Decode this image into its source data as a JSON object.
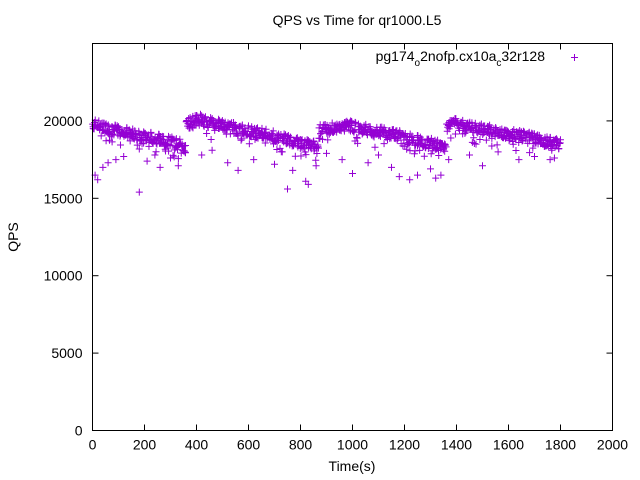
{
  "chart_data": {
    "type": "scatter",
    "title": "QPS vs Time for qr1000.L5",
    "xlabel": "Time(s)",
    "ylabel": "QPS",
    "xlim": [
      0,
      2000
    ],
    "ylim": [
      0,
      25000
    ],
    "x_ticks": [
      0,
      200,
      400,
      600,
      800,
      1000,
      1200,
      1400,
      1600,
      1800,
      2000
    ],
    "y_ticks": [
      0,
      5000,
      10000,
      15000,
      20000
    ],
    "grid": false,
    "legend_position": "top-right",
    "marker": "+",
    "series": [
      {
        "name": "pg174_o2nofp.cx10a_c32r128",
        "legend_text": {
          "a": "pg174",
          "b": "o",
          "c": "2nofp.cx10a",
          "d": "c",
          "e": "32r128"
        },
        "color": "#9400d3",
        "sample_interval_s": 5,
        "segments": [
          {
            "x_range": [
              0,
              60
            ],
            "trend": [
              19800,
              19500
            ]
          },
          {
            "x_range": [
              60,
              200
            ],
            "trend": [
              19500,
              19000
            ]
          },
          {
            "x_range": [
              200,
              340
            ],
            "trend": [
              19000,
              18500
            ]
          },
          {
            "x_range": [
              340,
              360
            ],
            "trend": [
              18200,
              18200
            ]
          },
          {
            "x_range": [
              360,
              420
            ],
            "trend": [
              19800,
              20200
            ]
          },
          {
            "x_range": [
              420,
              700
            ],
            "trend": [
              20000,
              19000
            ]
          },
          {
            "x_range": [
              700,
              870
            ],
            "trend": [
              19000,
              18300
            ]
          },
          {
            "x_range": [
              870,
              1000
            ],
            "trend": [
              19500,
              19700
            ]
          },
          {
            "x_range": [
              1000,
              1200
            ],
            "trend": [
              19600,
              19000
            ]
          },
          {
            "x_range": [
              1200,
              1360
            ],
            "trend": [
              18900,
              18300
            ]
          },
          {
            "x_range": [
              1360,
              1420
            ],
            "trend": [
              19700,
              19900
            ]
          },
          {
            "x_range": [
              1420,
              1650
            ],
            "trend": [
              19700,
              19000
            ]
          },
          {
            "x_range": [
              1650,
              1800
            ],
            "trend": [
              19000,
              18500
            ]
          }
        ],
        "outliers": [
          [
            10,
            16500
          ],
          [
            20,
            16200
          ],
          [
            40,
            17000
          ],
          [
            60,
            17300
          ],
          [
            90,
            17500
          ],
          [
            120,
            17700
          ],
          [
            180,
            15400
          ],
          [
            210,
            17400
          ],
          [
            240,
            17800
          ],
          [
            260,
            17000
          ],
          [
            300,
            17600
          ],
          [
            330,
            17100
          ],
          [
            420,
            17800
          ],
          [
            460,
            18100
          ],
          [
            520,
            17300
          ],
          [
            560,
            16800
          ],
          [
            620,
            17500
          ],
          [
            700,
            17200
          ],
          [
            750,
            15600
          ],
          [
            770,
            16800
          ],
          [
            820,
            16100
          ],
          [
            830,
            15900
          ],
          [
            860,
            17100
          ],
          [
            900,
            17900
          ],
          [
            960,
            17500
          ],
          [
            1000,
            16600
          ],
          [
            1060,
            17300
          ],
          [
            1100,
            17800
          ],
          [
            1150,
            17000
          ],
          [
            1180,
            16400
          ],
          [
            1220,
            16200
          ],
          [
            1250,
            16500
          ],
          [
            1300,
            16900
          ],
          [
            1320,
            16300
          ],
          [
            1340,
            16500
          ],
          [
            1370,
            17500
          ],
          [
            1450,
            17800
          ],
          [
            1500,
            17100
          ],
          [
            1560,
            18000
          ],
          [
            1640,
            17500
          ],
          [
            1700,
            17700
          ],
          [
            1760,
            17500
          ]
        ]
      }
    ]
  }
}
